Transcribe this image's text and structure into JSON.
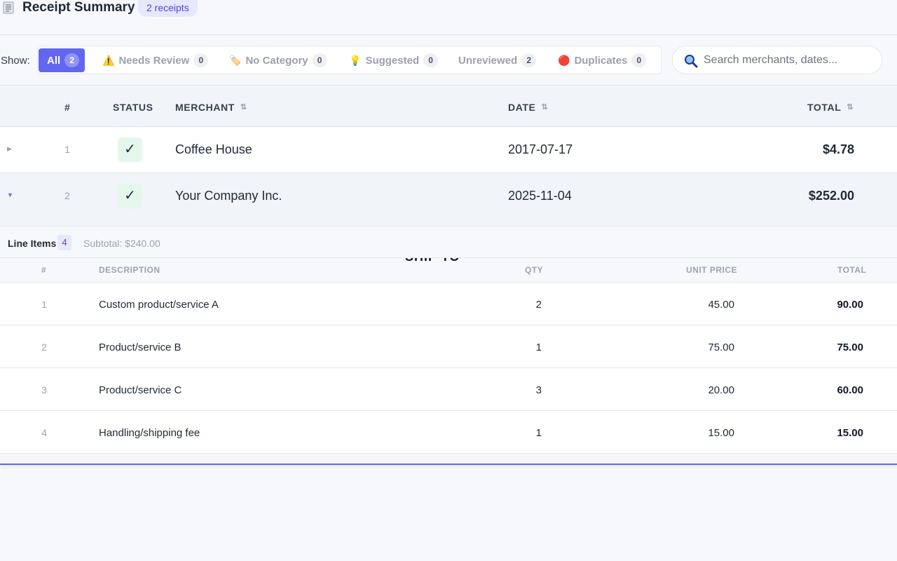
{
  "header": {
    "title": "Receipt Summary",
    "badge": "2 receipts",
    "icon": "receipt-icon"
  },
  "filters": {
    "show_label": "Show:",
    "chips": [
      {
        "label": "All",
        "count": "2",
        "icon": "",
        "active": true
      },
      {
        "label": "Needs Review",
        "count": "0",
        "icon": "warning-icon"
      },
      {
        "label": "No Category",
        "count": "0",
        "icon": "tag-icon"
      },
      {
        "label": "Suggested",
        "count": "0",
        "icon": "lightbulb-icon"
      },
      {
        "label": "Unreviewed",
        "count": "2",
        "icon": ""
      },
      {
        "label": "Duplicates",
        "count": "0",
        "icon": "red-circle-icon"
      }
    ],
    "search_placeholder": "Search merchants, dates..."
  },
  "table": {
    "columns": {
      "num": "#",
      "status": "STATUS",
      "merchant": "MERCHANT",
      "date": "DATE",
      "total": "TOTAL"
    },
    "rows": [
      {
        "num": "1",
        "status": "✓",
        "merchant": "Coffee House",
        "date": "2017-07-17",
        "total": "$4.78",
        "expanded": false
      },
      {
        "num": "2",
        "status": "✓",
        "merchant": "Your Company Inc.",
        "date": "2025-11-04",
        "total": "$252.00",
        "expanded": true
      }
    ]
  },
  "line_items": {
    "title": "Line Items",
    "count": "4",
    "subtotal": "Subtotal: $240.00",
    "columns": {
      "num": "#",
      "description": "DESCRIPTION",
      "qty": "QTY",
      "unit_price": "UNIT PRICE",
      "total": "TOTAL"
    },
    "overlay_fragment": "SHIP TO",
    "items": [
      {
        "num": "1",
        "description": "Custom product/service A",
        "qty": "2",
        "unit_price": "45.00",
        "total": "90.00"
      },
      {
        "num": "2",
        "description": "Product/service B",
        "qty": "1",
        "unit_price": "75.00",
        "total": "75.00"
      },
      {
        "num": "3",
        "description": "Product/service C",
        "qty": "3",
        "unit_price": "20.00",
        "total": "60.00"
      },
      {
        "num": "4",
        "description": "Handling/shipping fee",
        "qty": "1",
        "unit_price": "15.00",
        "total": "15.00"
      }
    ]
  },
  "colors": {
    "accent": "#6366f1",
    "status_bg": "#e3f8ea"
  }
}
